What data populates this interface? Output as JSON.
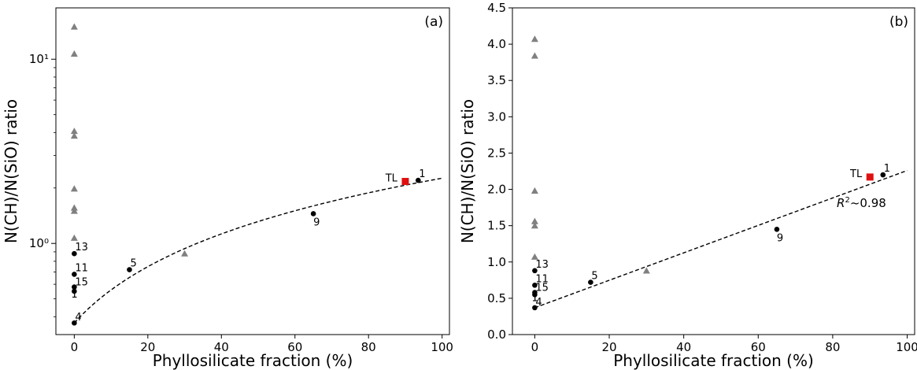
{
  "chart_data": [
    {
      "panel_label": "(a)",
      "type": "scatter",
      "xlabel": "Phyllosilicate fraction (%)",
      "ylabel": "N(CH)/N(SiO) ratio",
      "yscale": "log",
      "xlim": [
        -5,
        102
      ],
      "ylim": [
        0.32,
        19
      ],
      "x_ticks": [
        0,
        20,
        40,
        60,
        80,
        100
      ],
      "y_ticks": [
        {
          "value": 1,
          "label": "10⁰"
        },
        {
          "value": 10,
          "label": "10¹"
        }
      ],
      "grid": false,
      "fit": {
        "style": "dashed",
        "curve": "linear-in-x",
        "intercept": 0.37,
        "slope": 0.0189,
        "x_range": [
          0,
          100
        ]
      },
      "black_points": [
        {
          "label": "4",
          "x": 0,
          "y": 0.37
        },
        {
          "label": "1",
          "x": 0,
          "y": 0.55
        },
        {
          "label": "15",
          "x": 0,
          "y": 0.58
        },
        {
          "label": "11",
          "x": 0,
          "y": 0.68
        },
        {
          "label": "13",
          "x": 0,
          "y": 0.88
        },
        {
          "label": "5",
          "x": 15,
          "y": 0.72
        },
        {
          "label": "9",
          "x": 65,
          "y": 1.45
        },
        {
          "label": "1",
          "x": 93.5,
          "y": 2.2
        }
      ],
      "gray_triangles": [
        {
          "x": 0,
          "y": 15.0
        },
        {
          "x": 0,
          "y": 10.7
        },
        {
          "x": 0,
          "y": 4.07
        },
        {
          "x": 0,
          "y": 3.84
        },
        {
          "x": 0,
          "y": 1.98
        },
        {
          "x": 0,
          "y": 1.56
        },
        {
          "x": 0,
          "y": 1.5
        },
        {
          "x": 0,
          "y": 1.07
        },
        {
          "x": 30,
          "y": 0.88
        }
      ],
      "highlight": {
        "label": "TL",
        "x": 90,
        "y": 2.17,
        "color": "#e01010"
      }
    },
    {
      "panel_label": "(b)",
      "type": "scatter",
      "xlabel": "Phyllosilicate fraction (%)",
      "ylabel": "N(CH)/N(SiO) ratio",
      "yscale": "linear",
      "xlim": [
        -6,
        102
      ],
      "ylim": [
        0,
        4.5
      ],
      "x_ticks": [
        0,
        20,
        40,
        60,
        80,
        100
      ],
      "y_ticks": [
        0.0,
        0.5,
        1.0,
        1.5,
        2.0,
        2.5,
        3.0,
        3.5,
        4.0,
        4.5
      ],
      "grid": false,
      "fit": {
        "style": "dashed",
        "curve": "linear",
        "intercept": 0.37,
        "slope": 0.0189,
        "x_range": [
          0,
          100
        ]
      },
      "r2_annotation": {
        "prefix": "R",
        "exponent": "2",
        "suffix": "~0.98"
      },
      "black_points": [
        {
          "label": "4",
          "x": 0,
          "y": 0.37
        },
        {
          "label": "1",
          "x": 0,
          "y": 0.55
        },
        {
          "label": "15",
          "x": 0,
          "y": 0.58
        },
        {
          "label": "11",
          "x": 0,
          "y": 0.68
        },
        {
          "label": "13",
          "x": 0,
          "y": 0.88
        },
        {
          "label": "5",
          "x": 15,
          "y": 0.72
        },
        {
          "label": "9",
          "x": 65,
          "y": 1.45
        },
        {
          "label": "1",
          "x": 93.5,
          "y": 2.2
        }
      ],
      "gray_triangles": [
        {
          "x": 0,
          "y": 4.07
        },
        {
          "x": 0,
          "y": 3.84
        },
        {
          "x": 0,
          "y": 1.98
        },
        {
          "x": 0,
          "y": 1.56
        },
        {
          "x": 0,
          "y": 1.5
        },
        {
          "x": 0,
          "y": 1.07
        },
        {
          "x": 30,
          "y": 0.88
        }
      ],
      "highlight": {
        "label": "TL",
        "x": 90,
        "y": 2.17,
        "color": "#e01010"
      }
    }
  ],
  "colors": {
    "black_point": "#000000",
    "gray_triangle": "#808080",
    "fit_line": "#000000",
    "axes": "#000000"
  }
}
